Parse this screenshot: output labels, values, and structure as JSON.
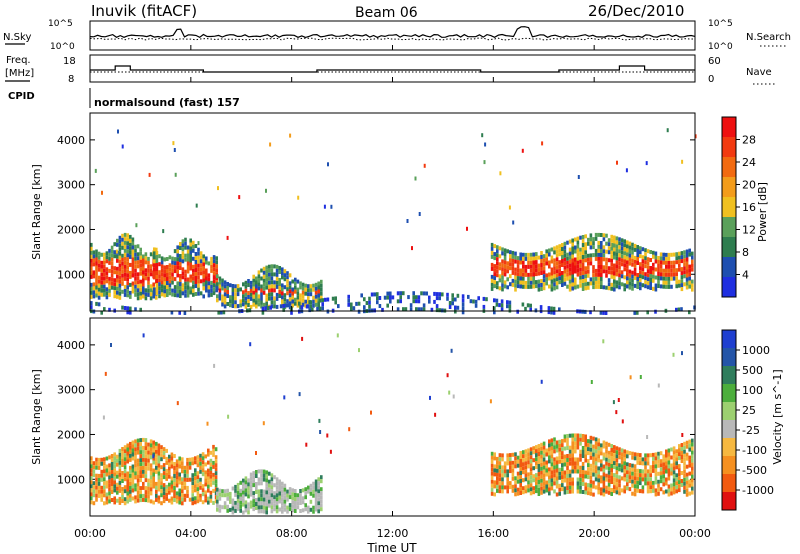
{
  "header": {
    "station": "Inuvik (fitACF)",
    "beam": "Beam 06",
    "date": "26/Dec/2010"
  },
  "top_panels": {
    "nsky_label": "N.Sky",
    "nsky_ticks": [
      "10^5",
      "10^0"
    ],
    "nsearch_label": "N.Search",
    "nsearch_ticks": [
      "10^5",
      "10^0"
    ],
    "freq_label_1": "Freq.",
    "freq_label_2": "[MHz]",
    "freq_ticks": [
      "18",
      "8"
    ],
    "nave_label": "Nave",
    "nave_ticks": [
      "60",
      "0"
    ],
    "cpid_label": "CPID",
    "cpid_text": "normalsound (fast) 157"
  },
  "colors": {
    "power_scale": [
      "#1f2fe0",
      "#1e4fb0",
      "#2e7d4f",
      "#5aa05a",
      "#f0c020",
      "#f39c1b",
      "#f26a10",
      "#f23a10",
      "#ee1010"
    ],
    "velocity_scale": [
      "#e01010",
      "#f25a10",
      "#f59020",
      "#f6b840",
      "#b8b8b8",
      "#9cd070",
      "#4cae3c",
      "#2f7d5c",
      "#2455a8",
      "#1f3fd0"
    ]
  },
  "chart_data": [
    {
      "type": "heatmap",
      "title": "Power",
      "ylabel": "Slant Range [km]",
      "ylim": [
        180,
        4600
      ],
      "y_ticks": [
        "4000",
        "3000",
        "2000",
        "1000"
      ],
      "colorbar_label": "Power [dB]",
      "colorbar_ticks": [
        "28",
        "24",
        "20",
        "16",
        "12",
        "8",
        "4"
      ],
      "colorbar_range": [
        0,
        30
      ],
      "regions": [
        {
          "t_start": 0.0,
          "t_end": 2.6,
          "r_low": 500,
          "r_high": 1700,
          "level": "high"
        },
        {
          "t_start": 2.5,
          "t_end": 5.0,
          "r_low": 550,
          "r_high": 1600,
          "level": "high"
        },
        {
          "t_start": 5.0,
          "t_end": 9.2,
          "r_low": 300,
          "r_high": 1000,
          "level": "high"
        },
        {
          "t_start": 15.9,
          "t_end": 23.9,
          "r_low": 700,
          "r_high": 1700,
          "level": "high"
        },
        {
          "t_start": 0.0,
          "t_end": 24.0,
          "r_low": 180,
          "r_high": 400,
          "level": "low"
        }
      ]
    },
    {
      "type": "heatmap",
      "title": "Velocity",
      "ylabel": "Slant Range [km]",
      "ylim": [
        180,
        4600
      ],
      "y_ticks": [
        "4000",
        "3000",
        "2000",
        "1000"
      ],
      "colorbar_label": "Velocity [m s^-1]",
      "colorbar_ticks": [
        "1000",
        "500",
        "100",
        "25",
        "-25",
        "-100",
        "-500",
        "-1000"
      ],
      "colorbar_range": [
        -1000,
        1000
      ],
      "regions": [
        {
          "t_start": 0.0,
          "t_end": 5.0,
          "r_low": 500,
          "r_high": 1700,
          "level": "negative"
        },
        {
          "t_start": 5.0,
          "t_end": 9.2,
          "r_low": 300,
          "r_high": 1000,
          "level": "mixed"
        },
        {
          "t_start": 15.9,
          "t_end": 23.9,
          "r_low": 700,
          "r_high": 1800,
          "level": "negative"
        }
      ]
    }
  ],
  "x_axis": {
    "label": "Time UT",
    "ticks": [
      "00:00",
      "04:00",
      "08:00",
      "12:00",
      "16:00",
      "20:00",
      "00:00"
    ],
    "range_hours": [
      0,
      24
    ]
  }
}
